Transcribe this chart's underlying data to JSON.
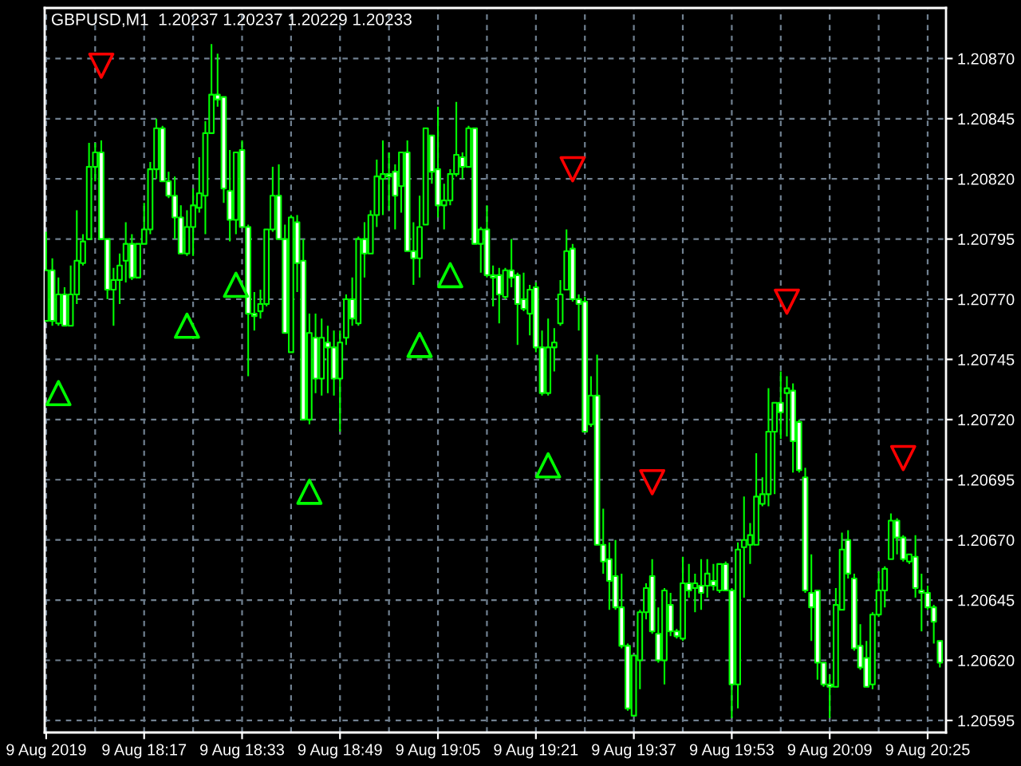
{
  "chart_data": {
    "type": "candlestick",
    "title": "GBPUSD,M1  1.20237 1.20237 1.20229 1.20233",
    "x": [
      "2019-08-09T18:01",
      "2019-08-09T18:02",
      "2019-08-09T18:03",
      "2019-08-09T18:04",
      "2019-08-09T18:05",
      "2019-08-09T18:06",
      "2019-08-09T18:07",
      "2019-08-09T18:08",
      "2019-08-09T18:09",
      "2019-08-09T18:10",
      "2019-08-09T18:11",
      "2019-08-09T18:12",
      "2019-08-09T18:13",
      "2019-08-09T18:14",
      "2019-08-09T18:15",
      "2019-08-09T18:16",
      "2019-08-09T18:17",
      "2019-08-09T18:18",
      "2019-08-09T18:19",
      "2019-08-09T18:20",
      "2019-08-09T18:21",
      "2019-08-09T18:22",
      "2019-08-09T18:23",
      "2019-08-09T18:24",
      "2019-08-09T18:25",
      "2019-08-09T18:26",
      "2019-08-09T18:27",
      "2019-08-09T18:28",
      "2019-08-09T18:29",
      "2019-08-09T18:30",
      "2019-08-09T18:31",
      "2019-08-09T18:32",
      "2019-08-09T18:33",
      "2019-08-09T18:34",
      "2019-08-09T18:35",
      "2019-08-09T18:36",
      "2019-08-09T18:37",
      "2019-08-09T18:38",
      "2019-08-09T18:39",
      "2019-08-09T18:40",
      "2019-08-09T18:41",
      "2019-08-09T18:42",
      "2019-08-09T18:43",
      "2019-08-09T18:44",
      "2019-08-09T18:45",
      "2019-08-09T18:46",
      "2019-08-09T18:47",
      "2019-08-09T18:48",
      "2019-08-09T18:49",
      "2019-08-09T18:50",
      "2019-08-09T18:51",
      "2019-08-09T18:52",
      "2019-08-09T18:53",
      "2019-08-09T18:54",
      "2019-08-09T18:55",
      "2019-08-09T18:56",
      "2019-08-09T18:57",
      "2019-08-09T18:58",
      "2019-08-09T18:59",
      "2019-08-09T19:00",
      "2019-08-09T19:01",
      "2019-08-09T19:02",
      "2019-08-09T19:03",
      "2019-08-09T19:04",
      "2019-08-09T19:05",
      "2019-08-09T19:06",
      "2019-08-09T19:07",
      "2019-08-09T19:08",
      "2019-08-09T19:09",
      "2019-08-09T19:10",
      "2019-08-09T19:11",
      "2019-08-09T19:12",
      "2019-08-09T19:13",
      "2019-08-09T19:14",
      "2019-08-09T19:15",
      "2019-08-09T19:16",
      "2019-08-09T19:17",
      "2019-08-09T19:18",
      "2019-08-09T19:19",
      "2019-08-09T19:20",
      "2019-08-09T19:21",
      "2019-08-09T19:22",
      "2019-08-09T19:23",
      "2019-08-09T19:24",
      "2019-08-09T19:25",
      "2019-08-09T19:26",
      "2019-08-09T19:27",
      "2019-08-09T19:28",
      "2019-08-09T19:29",
      "2019-08-09T19:30",
      "2019-08-09T19:31",
      "2019-08-09T19:32",
      "2019-08-09T19:33",
      "2019-08-09T19:34",
      "2019-08-09T19:35",
      "2019-08-09T19:36",
      "2019-08-09T19:37",
      "2019-08-09T19:38",
      "2019-08-09T19:39",
      "2019-08-09T19:40",
      "2019-08-09T19:41",
      "2019-08-09T19:42",
      "2019-08-09T19:43",
      "2019-08-09T19:44",
      "2019-08-09T19:45",
      "2019-08-09T19:46",
      "2019-08-09T19:47",
      "2019-08-09T19:48",
      "2019-08-09T19:49",
      "2019-08-09T19:50",
      "2019-08-09T19:51",
      "2019-08-09T19:52",
      "2019-08-09T19:53",
      "2019-08-09T19:54",
      "2019-08-09T19:55",
      "2019-08-09T19:56",
      "2019-08-09T19:57",
      "2019-08-09T19:58",
      "2019-08-09T19:59",
      "2019-08-09T20:00",
      "2019-08-09T20:01",
      "2019-08-09T20:02",
      "2019-08-09T20:03",
      "2019-08-09T20:04",
      "2019-08-09T20:05",
      "2019-08-09T20:06",
      "2019-08-09T20:07",
      "2019-08-09T20:08",
      "2019-08-09T20:09",
      "2019-08-09T20:10",
      "2019-08-09T20:11",
      "2019-08-09T20:12",
      "2019-08-09T20:13",
      "2019-08-09T20:14",
      "2019-08-09T20:15",
      "2019-08-09T20:16",
      "2019-08-09T20:17",
      "2019-08-09T20:18",
      "2019-08-09T20:19",
      "2019-08-09T20:20",
      "2019-08-09T20:21",
      "2019-08-09T20:22",
      "2019-08-09T20:23",
      "2019-08-09T20:24",
      "2019-08-09T20:25",
      "2019-08-09T20:26",
      "2019-08-09T20:27"
    ],
    "series": [
      {
        "color": "#00ff00",
        "ohlc": [
          [
            1.20761,
            1.20798,
            1.20761,
            1.20782
          ],
          [
            1.20782,
            1.20787,
            1.20759,
            1.20761
          ],
          [
            1.2076,
            1.20779,
            1.20759,
            1.20772
          ],
          [
            1.20772,
            1.20775,
            1.20759,
            1.20759
          ],
          [
            1.20759,
            1.20784,
            1.20759,
            1.20772
          ],
          [
            1.20772,
            1.20807,
            1.20768,
            1.20786
          ],
          [
            1.20785,
            1.20797,
            1.20784,
            1.20794
          ],
          [
            1.20795,
            1.20835,
            1.20795,
            1.20825
          ],
          [
            1.20825,
            1.20835,
            1.20819,
            1.20831
          ],
          [
            1.20831,
            1.20836,
            1.20795,
            1.20795
          ],
          [
            1.20795,
            1.20795,
            1.2077,
            1.20774
          ],
          [
            1.20774,
            1.20783,
            1.20759,
            1.20778
          ],
          [
            1.20778,
            1.20789,
            1.20768,
            1.20784
          ],
          [
            1.20786,
            1.20802,
            1.20777,
            1.20793
          ],
          [
            1.20793,
            1.20797,
            1.20778,
            1.20779
          ],
          [
            1.20779,
            1.20793,
            1.20779,
            1.20793
          ],
          [
            1.20793,
            1.2081,
            1.20793,
            1.20799
          ],
          [
            1.20799,
            1.20827,
            1.20797,
            1.20824
          ],
          [
            1.20824,
            1.20845,
            1.2082,
            1.20841
          ],
          [
            1.20841,
            1.20842,
            1.20819,
            1.20819
          ],
          [
            1.20819,
            1.20823,
            1.20812,
            1.20813
          ],
          [
            1.20813,
            1.20821,
            1.20795,
            1.20804
          ],
          [
            1.20804,
            1.20809,
            1.20789,
            1.20789
          ],
          [
            1.20789,
            1.20807,
            1.20788,
            1.208
          ],
          [
            1.208,
            1.20816,
            1.20788,
            1.20809
          ],
          [
            1.20808,
            1.20829,
            1.20806,
            1.20814
          ],
          [
            1.20813,
            1.20844,
            1.20797,
            1.20839
          ],
          [
            1.20839,
            1.20876,
            1.20839,
            1.20855
          ],
          [
            1.20855,
            1.20872,
            1.2085,
            1.20853
          ],
          [
            1.20854,
            1.20854,
            1.2081,
            1.20816
          ],
          [
            1.20815,
            1.20832,
            1.20794,
            1.20803
          ],
          [
            1.20803,
            1.20831,
            1.20797,
            1.20831
          ],
          [
            1.20832,
            1.20836,
            1.208,
            1.208
          ],
          [
            1.208,
            1.20801,
            1.20738,
            1.20764
          ],
          [
            1.20764,
            1.20773,
            1.20757,
            1.20763
          ],
          [
            1.20765,
            1.20774,
            1.20762,
            1.20768
          ],
          [
            1.20768,
            1.20799,
            1.20767,
            1.20799
          ],
          [
            1.20799,
            1.20825,
            1.20798,
            1.20813
          ],
          [
            1.20813,
            1.20826,
            1.20795,
            1.20795
          ],
          [
            1.20795,
            1.20801,
            1.20756,
            1.20756
          ],
          [
            1.20748,
            1.20805,
            1.20748,
            1.20804
          ],
          [
            1.20802,
            1.20805,
            1.20773,
            1.20785
          ],
          [
            1.20786,
            1.20795,
            1.2072,
            1.2072
          ],
          [
            1.2072,
            1.20764,
            1.20718,
            1.20756
          ],
          [
            1.20754,
            1.20764,
            1.20731,
            1.20737
          ],
          [
            1.20737,
            1.20762,
            1.2073,
            1.20754
          ],
          [
            1.20752,
            1.20759,
            1.20731,
            1.2075
          ],
          [
            1.2075,
            1.20757,
            1.2073,
            1.20737
          ],
          [
            1.20737,
            1.20757,
            1.20715,
            1.20752
          ],
          [
            1.20754,
            1.20772,
            1.20751,
            1.2077
          ],
          [
            1.2077,
            1.20779,
            1.20759,
            1.20762
          ],
          [
            1.2076,
            1.20796,
            1.20759,
            1.20795
          ],
          [
            1.20795,
            1.20802,
            1.20779,
            1.20789
          ],
          [
            1.20789,
            1.20807,
            1.20789,
            1.20805
          ],
          [
            1.20805,
            1.20828,
            1.208,
            1.20821
          ],
          [
            1.2082,
            1.20836,
            1.20805,
            1.20822
          ],
          [
            1.20822,
            1.20831,
            1.20807,
            1.20821
          ],
          [
            1.20823,
            1.20826,
            1.20799,
            1.20813
          ],
          [
            1.20817,
            1.20831,
            1.20806,
            1.20831
          ],
          [
            1.20831,
            1.20836,
            1.2079,
            1.2079
          ],
          [
            1.2079,
            1.20802,
            1.20776,
            1.20787
          ],
          [
            1.20787,
            1.20813,
            1.20779,
            1.208
          ],
          [
            1.20801,
            1.20841,
            1.20801,
            1.20841
          ],
          [
            1.20838,
            1.20838,
            1.20818,
            1.20823
          ],
          [
            1.20824,
            1.2085,
            1.20804,
            1.20809
          ],
          [
            1.20809,
            1.20818,
            1.20799,
            1.20811
          ],
          [
            1.20811,
            1.20824,
            1.20809,
            1.20822
          ],
          [
            1.20822,
            1.20852,
            1.20821,
            1.2083
          ],
          [
            1.20829,
            1.20831,
            1.2082,
            1.20825
          ],
          [
            1.20825,
            1.20842,
            1.20825,
            1.20841
          ],
          [
            1.20841,
            1.20841,
            1.20793,
            1.20793
          ],
          [
            1.20793,
            1.208,
            1.20781,
            1.20799
          ],
          [
            1.20799,
            1.20809,
            1.20779,
            1.2078
          ],
          [
            1.2078,
            1.20784,
            1.20767,
            1.20779
          ],
          [
            1.2078,
            1.20783,
            1.2076,
            1.20772
          ],
          [
            1.20771,
            1.20783,
            1.2077,
            1.20782
          ],
          [
            1.20782,
            1.20795,
            1.20775,
            1.20779
          ],
          [
            1.2078,
            1.20781,
            1.20751,
            1.20768
          ],
          [
            1.2077,
            1.20781,
            1.20765,
            1.20766
          ],
          [
            1.20764,
            1.20776,
            1.20755,
            1.20774
          ],
          [
            1.20775,
            1.20777,
            1.20748,
            1.2075
          ],
          [
            1.2075,
            1.20757,
            1.2073,
            1.20731
          ],
          [
            1.20731,
            1.20762,
            1.2073,
            1.2075
          ],
          [
            1.2075,
            1.20758,
            1.2074,
            1.20752
          ],
          [
            1.2076,
            1.20778,
            1.20759,
            1.20772
          ],
          [
            1.20774,
            1.20799,
            1.20774,
            1.2079
          ],
          [
            1.20791,
            1.20793,
            1.20769,
            1.2077
          ],
          [
            1.2077,
            1.20772,
            1.20757,
            1.20768
          ],
          [
            1.20769,
            1.20771,
            1.20715,
            1.20715
          ],
          [
            1.20718,
            1.20738,
            1.20717,
            1.2073
          ],
          [
            1.2073,
            1.20747,
            1.20668,
            1.20668
          ],
          [
            1.20668,
            1.20683,
            1.20656,
            1.20661
          ],
          [
            1.20662,
            1.20669,
            1.20641,
            1.20653
          ],
          [
            1.20655,
            1.2067,
            1.20641,
            1.20642
          ],
          [
            1.20642,
            1.20656,
            1.20625,
            1.20626
          ],
          [
            1.20626,
            1.20627,
            1.20599,
            1.206
          ],
          [
            1.20597,
            1.20622,
            1.20597,
            1.20622
          ],
          [
            1.2062,
            1.20641,
            1.20608,
            1.2064
          ],
          [
            1.2064,
            1.20652,
            1.20637,
            1.2065
          ],
          [
            1.20655,
            1.20662,
            1.20631,
            1.20632
          ],
          [
            1.20631,
            1.20642,
            1.20619,
            1.2062
          ],
          [
            1.2062,
            1.2065,
            1.2061,
            1.20649
          ],
          [
            1.20643,
            1.20648,
            1.2063,
            1.20632
          ],
          [
            1.20632,
            1.20633,
            1.20629,
            1.2063
          ],
          [
            1.20629,
            1.20663,
            1.20628,
            1.20652
          ],
          [
            1.20652,
            1.2066,
            1.20646,
            1.20649
          ],
          [
            1.2065,
            1.20656,
            1.2064,
            1.20652
          ],
          [
            1.20651,
            1.20662,
            1.20641,
            1.20648
          ],
          [
            1.20651,
            1.20662,
            1.20646,
            1.20656
          ],
          [
            1.20653,
            1.2066,
            1.20649,
            1.20651
          ],
          [
            1.20649,
            1.2066,
            1.20648,
            1.2066
          ],
          [
            1.2066,
            1.20661,
            1.20649,
            1.20649
          ],
          [
            1.20649,
            1.2065,
            1.20596,
            1.2061
          ],
          [
            1.2061,
            1.20669,
            1.206,
            1.20666
          ],
          [
            1.20667,
            1.20688,
            1.20646,
            1.2067
          ],
          [
            1.20668,
            1.20677,
            1.2066,
            1.20672
          ],
          [
            1.20668,
            1.20706,
            1.20668,
            1.20688
          ],
          [
            1.20685,
            1.20696,
            1.20684,
            1.20689
          ],
          [
            1.20689,
            1.20733,
            1.20684,
            1.20715
          ],
          [
            1.20715,
            1.20727,
            1.20689,
            1.20727
          ],
          [
            1.20727,
            1.2074,
            1.20712,
            1.20723
          ],
          [
            1.20731,
            1.20738,
            1.20713,
            1.20733
          ],
          [
            1.20732,
            1.20735,
            1.20698,
            1.20711
          ],
          [
            1.20719,
            1.2072,
            1.20698,
            1.20699
          ],
          [
            1.20696,
            1.207,
            1.20648,
            1.20649
          ],
          [
            1.20648,
            1.20664,
            1.20628,
            1.20642
          ],
          [
            1.20649,
            1.20649,
            1.20612,
            1.20619
          ],
          [
            1.20619,
            1.20619,
            1.20609,
            1.2061
          ],
          [
            1.2061,
            1.20614,
            1.20596,
            1.20609
          ],
          [
            1.20609,
            1.2065,
            1.20609,
            1.20643
          ],
          [
            1.20641,
            1.20673,
            1.20641,
            1.20666
          ],
          [
            1.2067,
            1.20674,
            1.20654,
            1.20656
          ],
          [
            1.20654,
            1.20656,
            1.20624,
            1.20625
          ],
          [
            1.20626,
            1.20635,
            1.20616,
            1.20617
          ],
          [
            1.20621,
            1.20628,
            1.20609,
            1.20609
          ],
          [
            1.2061,
            1.2064,
            1.20608,
            1.20639
          ],
          [
            1.20639,
            1.20657,
            1.20638,
            1.20649
          ],
          [
            1.20649,
            1.20659,
            1.20642,
            1.20658
          ],
          [
            1.20662,
            1.20681,
            1.20662,
            1.20678
          ],
          [
            1.20678,
            1.20679,
            1.20664,
            1.20671
          ],
          [
            1.20671,
            1.20672,
            1.20661,
            1.20662
          ],
          [
            1.20661,
            1.20664,
            1.2066,
            1.20664
          ],
          [
            1.20663,
            1.20672,
            1.20646,
            1.2065
          ],
          [
            1.20649,
            1.20656,
            1.20632,
            1.20648
          ],
          [
            1.20648,
            1.20651,
            1.20641,
            1.20642
          ],
          [
            1.20642,
            1.20643,
            1.20627,
            1.20636
          ],
          [
            1.20628,
            1.20628,
            1.20617,
            1.20619
          ]
        ]
      },
      {
        "type": "scatter",
        "marker": "triangle",
        "color": "#00ff00",
        "x": [
          "2019-08-09T18:03",
          "2019-08-09T18:24",
          "2019-08-09T18:32",
          "2019-08-09T18:44",
          "2019-08-09T19:02",
          "2019-08-09T19:07",
          "2019-08-09T19:23"
        ],
        "values": [
          1.20731,
          1.20759,
          1.20776,
          1.2069,
          1.20751,
          1.2078,
          1.20701
        ]
      },
      {
        "type": "scatter",
        "marker": "triangle",
        "color": "#ff0000",
        "x": [
          "2019-08-09T18:10",
          "2019-08-09T19:27",
          "2019-08-09T19:40",
          "2019-08-09T20:02",
          "2019-08-09T20:21"
        ],
        "values": [
          1.20867,
          1.20824,
          1.20694,
          1.20769,
          1.20704
        ]
      }
    ],
    "xlim": [
      "2019-08-09T18:00:45",
      "2019-08-09T20:28"
    ],
    "xticks": [
      {
        "value": "2019-08-09T18:01",
        "label": "9 Aug 2019"
      },
      {
        "value": "2019-08-09T18:09",
        "label": null
      },
      {
        "value": "2019-08-09T18:17",
        "label": "9 Aug 18:17"
      },
      {
        "value": "2019-08-09T18:25",
        "label": null
      },
      {
        "value": "2019-08-09T18:33",
        "label": "9 Aug 18:33"
      },
      {
        "value": "2019-08-09T18:41",
        "label": null
      },
      {
        "value": "2019-08-09T18:49",
        "label": "9 Aug 18:49"
      },
      {
        "value": "2019-08-09T18:57",
        "label": null
      },
      {
        "value": "2019-08-09T19:05",
        "label": "9 Aug 19:05"
      },
      {
        "value": "2019-08-09T19:13",
        "label": null
      },
      {
        "value": "2019-08-09T19:21",
        "label": "9 Aug 19:21"
      },
      {
        "value": "2019-08-09T19:29",
        "label": null
      },
      {
        "value": "2019-08-09T19:37",
        "label": "9 Aug 19:37"
      },
      {
        "value": "2019-08-09T19:45",
        "label": null
      },
      {
        "value": "2019-08-09T19:53",
        "label": "9 Aug 19:53"
      },
      {
        "value": "2019-08-09T20:01",
        "label": null
      },
      {
        "value": "2019-08-09T20:09",
        "label": "9 Aug 20:09"
      },
      {
        "value": "2019-08-09T20:17",
        "label": null
      },
      {
        "value": "2019-08-09T20:25",
        "label": "9 Aug 20:25"
      }
    ],
    "ylim": [
      1.2059,
      1.20891
    ],
    "yticks": [
      {
        "value": 1.20595,
        "label": "1.20595"
      },
      {
        "value": 1.2062,
        "label": "1.20620"
      },
      {
        "value": 1.20645,
        "label": "1.20645"
      },
      {
        "value": 1.2067,
        "label": "1.20670"
      },
      {
        "value": 1.20695,
        "label": "1.20695"
      },
      {
        "value": 1.2072,
        "label": "1.20720"
      },
      {
        "value": 1.20745,
        "label": "1.20745"
      },
      {
        "value": 1.2077,
        "label": "1.20770"
      },
      {
        "value": 1.20795,
        "label": "1.20795"
      },
      {
        "value": 1.2082,
        "label": "1.20820"
      },
      {
        "value": 1.20845,
        "label": "1.20845"
      },
      {
        "value": 1.2087,
        "label": "1.20870"
      }
    ],
    "grid": true
  }
}
